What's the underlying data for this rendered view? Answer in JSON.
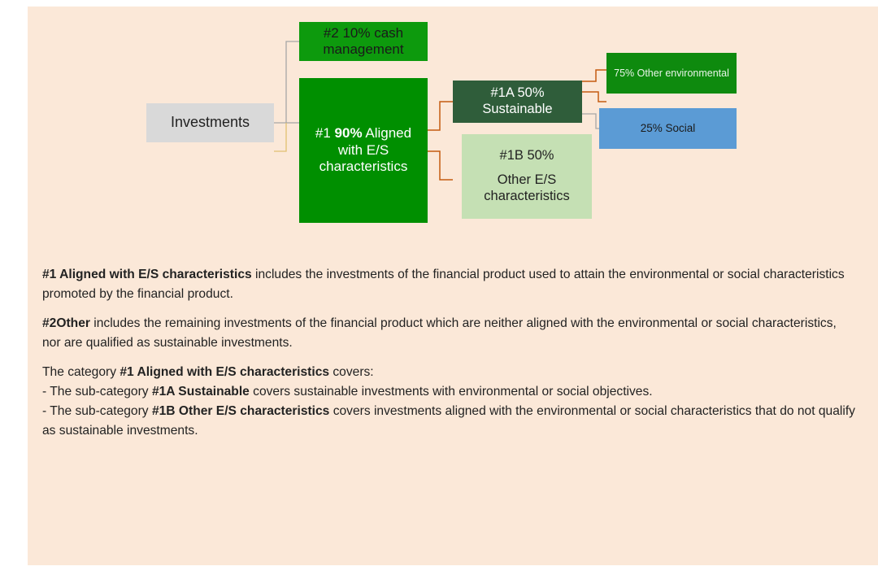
{
  "nodes": [
    {
      "runs": [
        {
          "text": "#2 10% cash management"
        }
      ]
    },
    {
      "runs": [
        {
          "text": "Investments"
        }
      ]
    },
    {
      "runs": [
        {
          "text": "#1 "
        },
        {
          "text": "90%",
          "bold": true
        },
        {
          "text": " Aligned with E/S characteristics"
        }
      ]
    },
    {
      "runs": [
        {
          "text": "#1A 50% Sustainable"
        }
      ]
    },
    {
      "runs": [
        {
          "text": "#1B 50%"
        },
        {
          "text": "Other E/S characteristics",
          "block": true
        }
      ]
    },
    {
      "runs": [
        {
          "text": "75% Other environmental"
        }
      ]
    },
    {
      "runs": [
        {
          "text": "25% Social"
        }
      ]
    }
  ],
  "paragraphs": [
    [
      [
        {
          "text": "#1 Aligned with E/S characteristics",
          "bold": true
        },
        {
          "text": " includes the investments of the financial product used to attain the environmental or social characteristics promoted by the financial product."
        }
      ]
    ],
    [
      [
        {
          "text": "#2Other",
          "bold": true
        },
        {
          "text": " includes the remaining investments of the financial product which are neither aligned with the environmental or social characteristics, nor are qualified as sustainable investments."
        }
      ]
    ],
    [
      [
        {
          "text": "The category "
        },
        {
          "text": "#1 Aligned with E/S characteristics",
          "bold": true
        },
        {
          "text": " covers:"
        }
      ],
      [
        {
          "text": "- The sub-category "
        },
        {
          "text": "#1A Sustainable",
          "bold": true
        },
        {
          "text": " covers sustainable investments with environmental or social objectives."
        }
      ],
      [
        {
          "text": "- The sub-category "
        },
        {
          "text": "#1B Other E/S characteristics",
          "bold": true
        },
        {
          "text": " covers investments aligned with the environmental or social characteristics that do not qualify as sustainable investments."
        }
      ]
    ]
  ]
}
